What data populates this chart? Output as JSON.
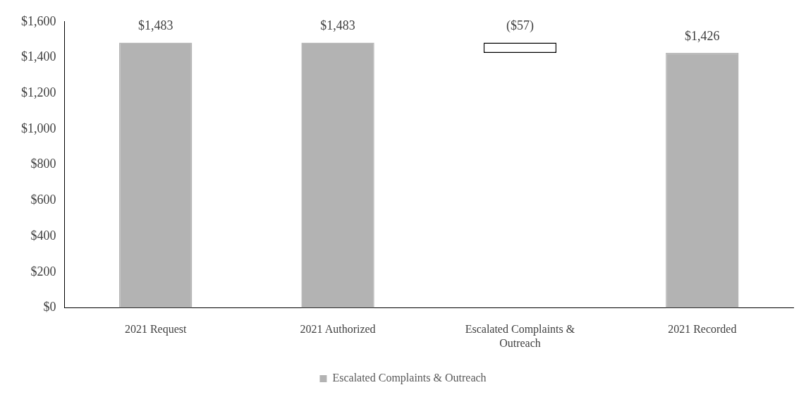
{
  "chart_data": {
    "type": "bar",
    "categories": [
      "2021 Request",
      "2021 Authorized",
      "Escalated Complaints & Outreach",
      "2021 Recorded"
    ],
    "series": [
      {
        "name": "Escalated Complaints & Outreach",
        "color": "#b3b3b3",
        "colors": [
          "#b3b3b3",
          "#b3b3b3",
          "#ffffff",
          "#b3b3b3"
        ],
        "values": [
          1483,
          1483,
          -57,
          1426
        ],
        "base": [
          0,
          0,
          1483,
          0
        ],
        "value_labels": [
          "$1,483",
          "$1,483",
          "($57)",
          "$1,426"
        ]
      }
    ],
    "ylim": [
      0,
      1600
    ],
    "yticks": [
      {
        "value": 0,
        "label": "$0"
      },
      {
        "value": 200,
        "label": "$200"
      },
      {
        "value": 400,
        "label": "$400"
      },
      {
        "value": 600,
        "label": "$600"
      },
      {
        "value": 800,
        "label": "$800"
      },
      {
        "value": 1000,
        "label": "$1,000"
      },
      {
        "value": 1200,
        "label": "$1,200"
      },
      {
        "value": 1400,
        "label": "$1,400"
      },
      {
        "value": 1600,
        "label": "$1,600"
      }
    ],
    "grid": false,
    "legend": "bottom"
  }
}
